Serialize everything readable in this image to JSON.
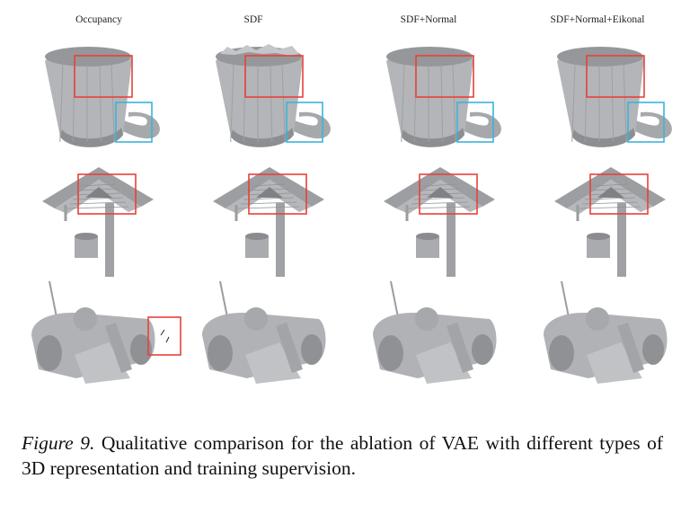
{
  "figure": {
    "columns": [
      {
        "header": "Occupancy"
      },
      {
        "header": "SDF"
      },
      {
        "header": "SDF+Normal"
      },
      {
        "header": "SDF+Normal+Eikonal"
      }
    ],
    "rows": [
      {
        "object": "mug"
      },
      {
        "object": "wishing-well"
      },
      {
        "object": "vehicle"
      }
    ],
    "highlight_colors": {
      "red": "#e8413a",
      "blue": "#3ab4dc"
    }
  },
  "caption": {
    "label": "Figure 9.",
    "text": "Qualitative comparison for the ablation of VAE with different types of 3D representation and training supervision."
  }
}
